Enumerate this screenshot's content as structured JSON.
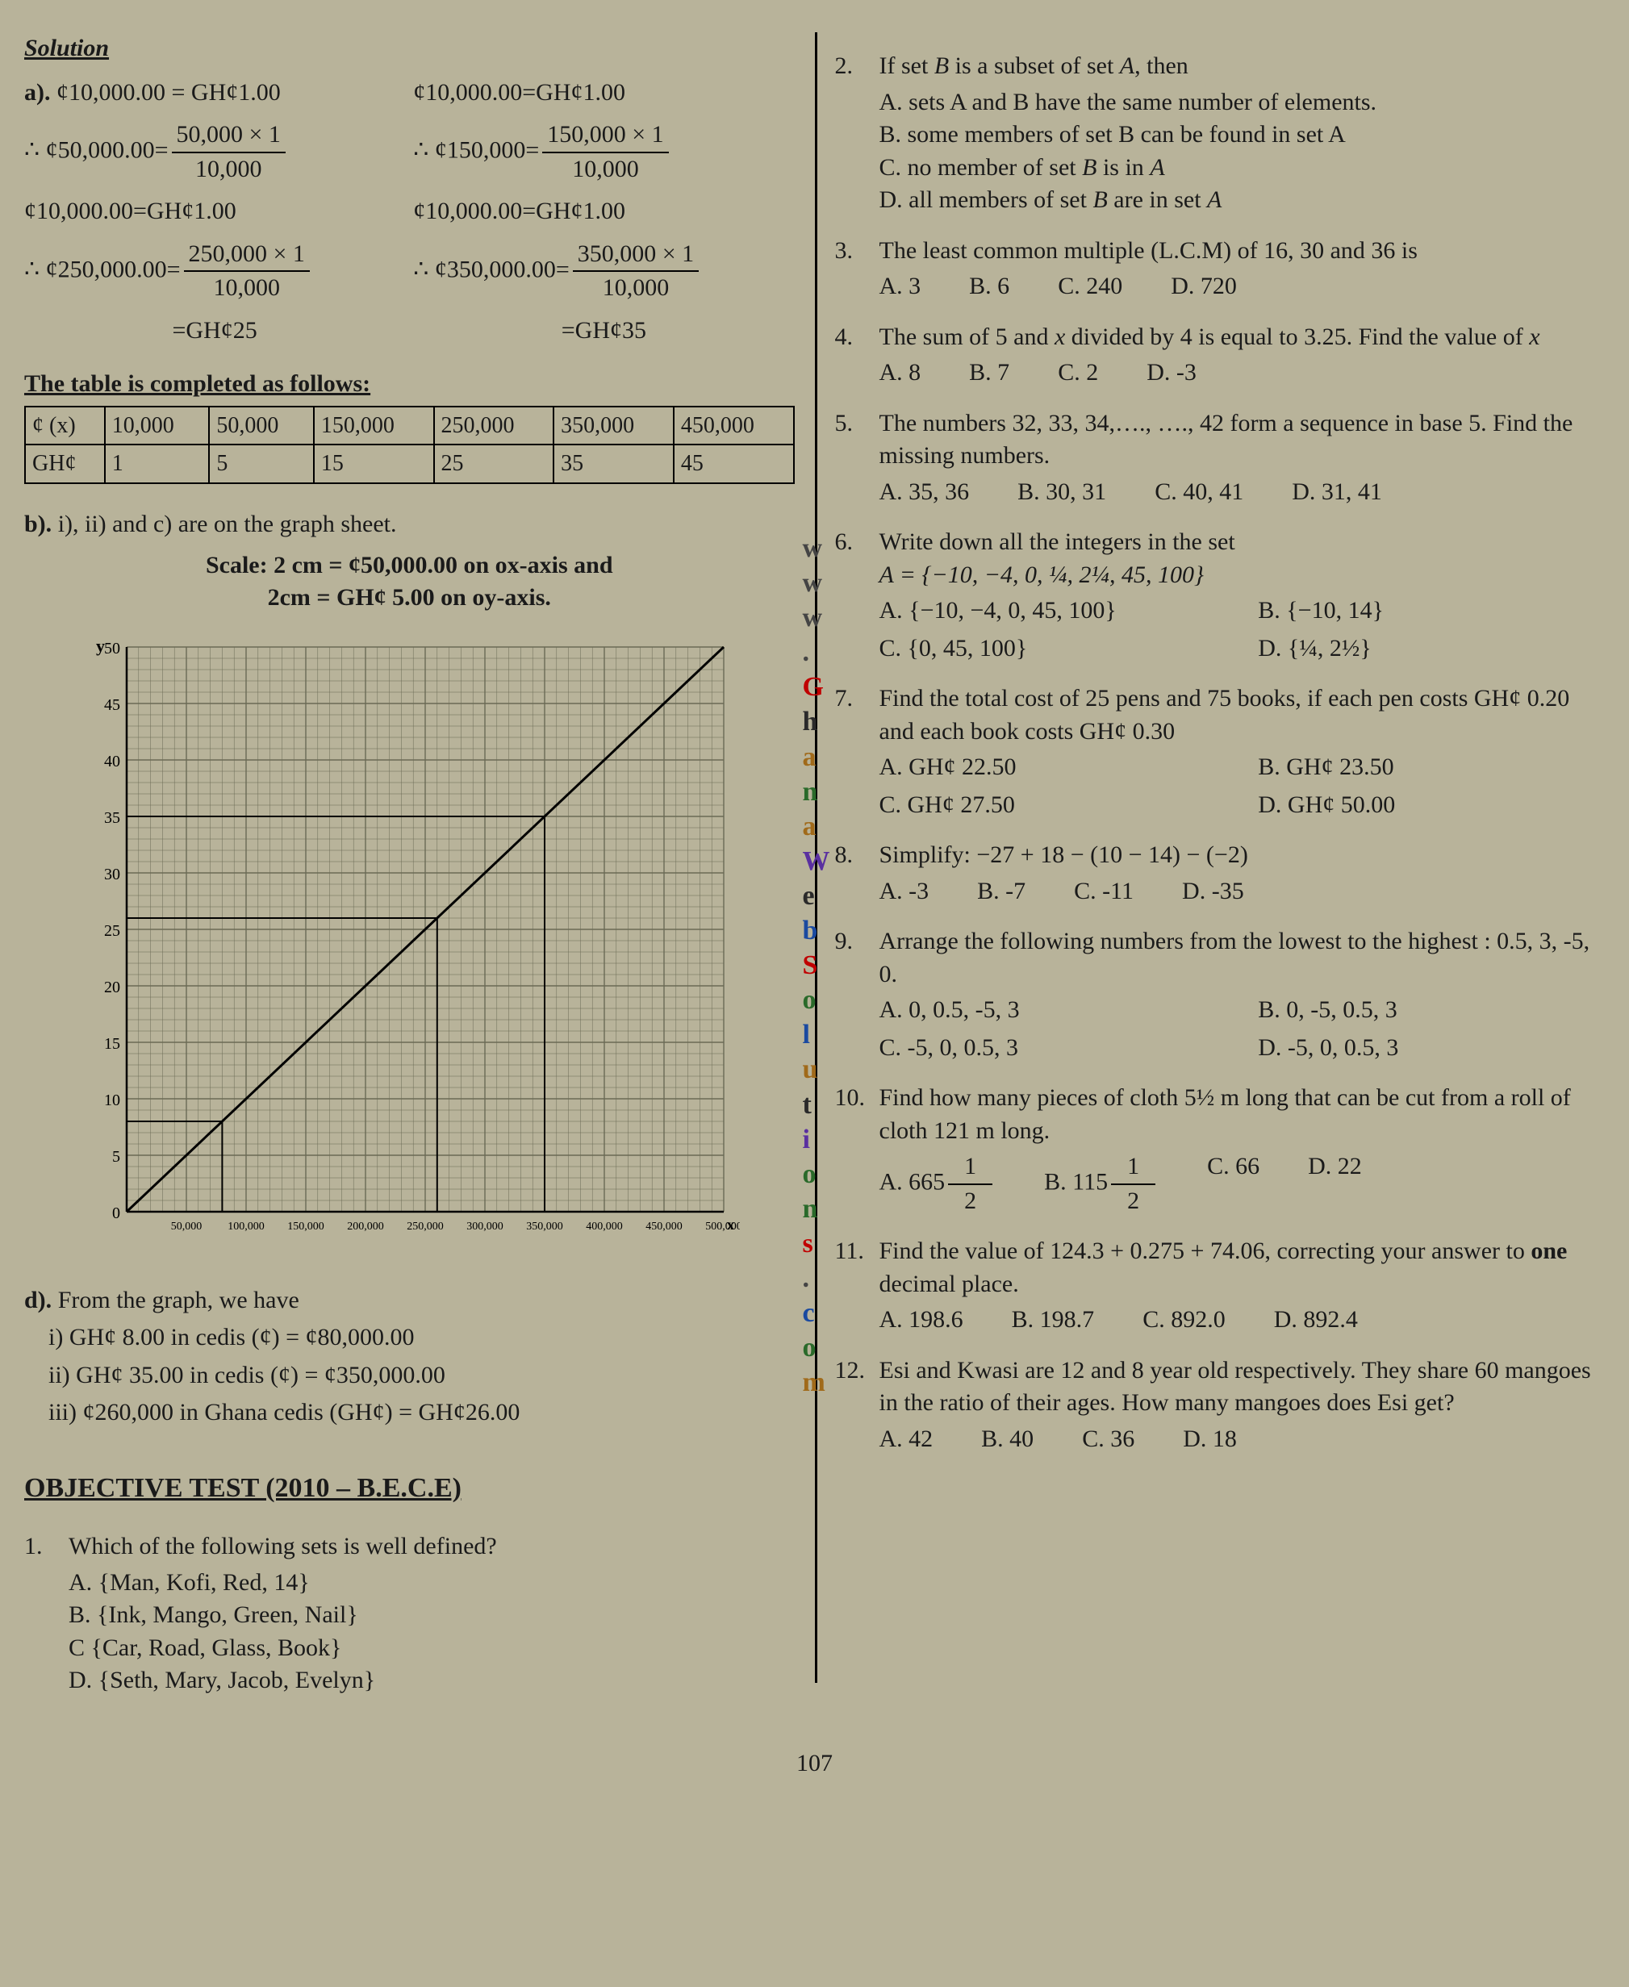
{
  "page_number": "107",
  "watermark": [
    "w",
    "w",
    "w",
    ".",
    "G",
    "h",
    "a",
    "n",
    "a",
    "W",
    "e",
    "b",
    "S",
    "o",
    "l",
    "u",
    "t",
    "i",
    "o",
    "n",
    "s",
    ".",
    "c",
    "o",
    "m"
  ],
  "watermark_classes": [
    "wm-w",
    "wm-w",
    "wm-w",
    "wm-dot",
    "wm-G",
    "wm-h",
    "wm-a",
    "wm-n",
    "wm-a",
    "wm-W",
    "wm-e",
    "wm-b",
    "wm-S",
    "wm-o",
    "wm-l",
    "wm-u",
    "wm-t",
    "wm-i",
    "wm-o",
    "wm-n",
    "wm-S",
    "wm-dot",
    "wm-c",
    "wm-o",
    "wm-m"
  ],
  "left": {
    "solution_title": "Solution",
    "a_label": "a).",
    "eq": {
      "r1a": "¢10,000.00 = GH¢1.00",
      "r1b": "¢10,000.00=GH¢1.00",
      "therefore": "∴",
      "c50_lhs": "¢50,000.00=",
      "c50_num": "50,000 × 1",
      "c50_den": "10,000",
      "c150_lhs": "¢150,000=",
      "c150_num": "150,000 × 1",
      "c150_den": "10,000",
      "r3a": "¢10,000.00=GH¢1.00",
      "r3b": "¢10,000.00=GH¢1.00",
      "c250_lhs": "¢250,000.00=",
      "c250_num": "250,000 × 1",
      "c250_den": "10,000",
      "c350_lhs": "¢350,000.00=",
      "c350_num": "350,000 × 1",
      "c350_den": "10,000",
      "res25": "=GH¢25",
      "res35": "=GH¢35"
    },
    "table_caption": "The table is completed as follows:",
    "table_header": [
      "¢ (x)",
      "10,000",
      "50,000",
      "150,000",
      "250,000",
      "350,000",
      "450,000"
    ],
    "table_row": [
      "GH¢",
      "1",
      "5",
      "15",
      "25",
      "35",
      "45"
    ],
    "b_label": "b).",
    "b_text": "i), ii) and c) are on the graph sheet.",
    "scale_line1": "Scale: 2 cm = ¢50,000.00 on ox-axis and",
    "scale_line2": "2cm = GH¢ 5.00 on oy-axis.",
    "graph": {
      "y_label": "y",
      "x_label": "x",
      "y_ticks": [
        "0",
        "5",
        "10",
        "15",
        "20",
        "25",
        "30",
        "35",
        "40",
        "45",
        "50"
      ],
      "x_ticks": [
        "50,000",
        "100,000",
        "150,000",
        "200,000",
        "250,000",
        "300,000",
        "350,000",
        "400,000",
        "450,000",
        "500,000"
      ],
      "xlim": [
        0,
        500000
      ],
      "ylim": [
        0,
        50
      ],
      "line_points": [
        [
          0,
          0
        ],
        [
          450000,
          45
        ],
        [
          500000,
          50
        ]
      ],
      "hlines_y": [
        26,
        8,
        35
      ],
      "vlines_x": [
        260000,
        80000,
        350000
      ],
      "grid_color": "#6a6a55",
      "axis_color": "#000",
      "line_color": "#000",
      "background": "#b8b39a"
    },
    "d_label": "d).",
    "d_intro": "From the graph, we have",
    "d_i": "i) GH¢ 8.00  in cedis (¢) = ¢80,000.00",
    "d_ii": "ii) GH¢ 35.00  in cedis (¢) = ¢350,000.00",
    "d_iii": "iii) ¢260,000 in Ghana cedis (GH¢) = GH¢26.00",
    "objective_title": "OBJECTIVE TEST (2010 – B.E.C.E)",
    "q1": {
      "num": "1.",
      "stem": "Which of the following sets is well defined?",
      "A": "A. {Man, Kofi, Red, 14}",
      "B": "B. {Ink, Mango, Green, Nail}",
      "C": "C  {Car, Road, Glass, Book}",
      "D": "D. {Seth, Mary, Jacob, Evelyn}"
    }
  },
  "right": {
    "q2": {
      "num": "2.",
      "stem_pre": "If set ",
      "stem_b": "B",
      "stem_mid": " is a subset of set ",
      "stem_a": "A",
      "stem_post": ", then",
      "A": "A. sets A and B have the same number of  elements.",
      "B": "B. some members of set B can be found in set A",
      "C_pre": "C. no member of set ",
      "C_b": "B",
      "C_mid": " is in ",
      "C_a": "A",
      "D_pre": "D. all  members of set ",
      "D_b": "B",
      "D_mid": " are in set ",
      "D_a": "A"
    },
    "q3": {
      "num": "3.",
      "stem": "The least common multiple (L.C.M) of 16, 30  and  36 is",
      "A": "A. 3",
      "B": "B. 6",
      "C": "C. 240",
      "D": "D. 720"
    },
    "q4": {
      "num": "4.",
      "stem_pre": "The sum of  5  and ",
      "stem_x": "x",
      "stem_post": " divided by  4 is equal to 3.25.  Find the value of ",
      "stem_x2": "x",
      "A": "A. 8",
      "B": "B. 7",
      "C": "C. 2",
      "D": "D. -3"
    },
    "q5": {
      "num": "5.",
      "stem": "The numbers  32, 33, 34,…., …., 42  form a sequence in base 5. Find the missing numbers.",
      "A": "A. 35, 36",
      "B": "B. 30, 31",
      "C": "C. 40, 41",
      "D": "D. 31, 41"
    },
    "q6": {
      "num": "6.",
      "stem": "Write down all the integers in the set",
      "setline": "A = {−10, −4, 0, ¼, 2¼, 45, 100}",
      "A": "A.  {−10, −4, 0, 45, 100}",
      "B": "B.  {−10, 14}",
      "C": "C.  {0, 45, 100}",
      "D": "D.  {¼, 2½}"
    },
    "q7": {
      "num": "7.",
      "stem": "Find the total cost of 25 pens and 75 books, if each pen costs GH¢ 0.20 and each book costs GH¢ 0.30",
      "A": "A.  GH¢ 22.50",
      "B": "B.  GH¢ 23.50",
      "C": "C.  GH¢ 27.50",
      "D": "D.  GH¢ 50.00"
    },
    "q8": {
      "num": "8.",
      "stem": "Simplify:  −27 + 18 − (10 − 14) − (−2)",
      "A": "A. -3",
      "B": "B. -7",
      "C": "C. -11",
      "D": "D. -35"
    },
    "q9": {
      "num": "9.",
      "stem": "Arrange the following numbers from the lowest to the highest :  0.5, 3, -5, 0.",
      "A": "A.  0, 0.5, -5, 3",
      "B": "B.  0, -5, 0.5, 3",
      "C": "C.  -5, 0, 0.5, 3",
      "D": "D.  -5, 0, 0.5, 3"
    },
    "q10": {
      "num": "10.",
      "stem": "Find how many pieces of cloth 5½ m  long that can be cut from a roll of cloth 121 m long.",
      "A_pre": "A. 665",
      "A_frac_n": "1",
      "A_frac_d": "2",
      "B_pre": "B. 115",
      "B_frac_n": "1",
      "B_frac_d": "2",
      "C": "C. 66",
      "D": "D. 22"
    },
    "q11": {
      "num": "11.",
      "stem_pre": "Find the value of  124.3 + 0.275 + 74.06, correcting your answer to ",
      "stem_bold": "one",
      "stem_post": " decimal place.",
      "A": "A. 198.6",
      "B": "B. 198.7",
      "C": "C. 892.0",
      "D": "D. 892.4"
    },
    "q12": {
      "num": "12.",
      "stem": "Esi and Kwasi are 12 and 8 year old respectively. They share 60 mangoes in the ratio of  their ages. How many mangoes does Esi get?",
      "A": "A. 42",
      "B": "B. 40",
      "C": "C. 36",
      "D": "D. 18"
    }
  }
}
